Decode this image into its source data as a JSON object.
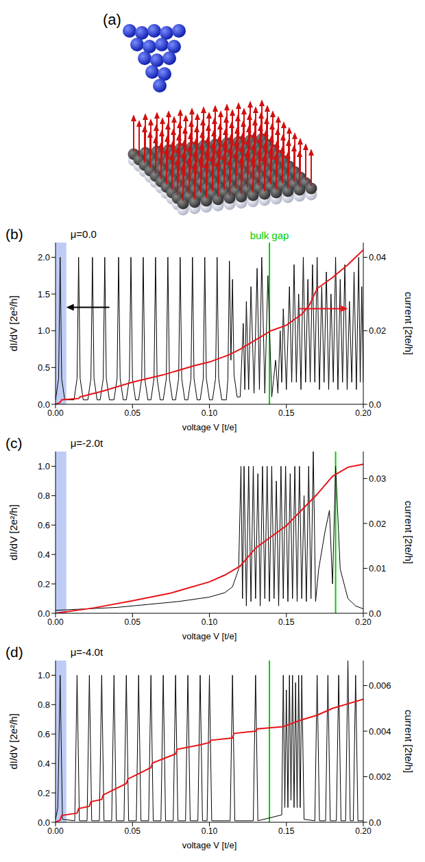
{
  "illustration": {
    "label": "(a)"
  },
  "chart_data": [
    {
      "type": "line",
      "title": "(b)",
      "annotations": [
        {
          "text": "μ=0.0"
        }
      ],
      "xlabel": "voltage V [t/e]",
      "ylabel": "dI/dV  [2e²/h]",
      "y2label": "current [2te/h]",
      "xlim": [
        0,
        0.2
      ],
      "xticks": [
        {
          "value": 0,
          "label": "0.00"
        },
        0.05,
        {
          "value": 0.1,
          "label": "0.10"
        },
        0.15,
        {
          "value": 0.2,
          "label": "0.20"
        }
      ],
      "ylim": [
        0,
        2.2
      ],
      "yticks": [
        {
          "value": 0,
          "label": "0.0"
        },
        0.5,
        {
          "value": 1,
          "label": "1.0"
        },
        1.5,
        {
          "value": 2,
          "label": "2.0"
        }
      ],
      "y2lim": [
        0,
        0.044
      ],
      "y2ticks": [
        {
          "value": 0,
          "label": "0.0"
        },
        0.02,
        0.04
      ],
      "band": {
        "x": [
          0,
          0.007
        ],
        "color": "#b3c3f3"
      },
      "vlines": [
        {
          "x": 0.139,
          "label": "bulk gap",
          "color": "#00cc00"
        }
      ],
      "series": [
        {
          "color": "#000000",
          "x": [
            0,
            0.002,
            0.003,
            0.004,
            0.006,
            0.012,
            0.014,
            0.015,
            0.016,
            0.018,
            0.021,
            0.023,
            0.024,
            0.025,
            0.027,
            0.029,
            0.031,
            0.032,
            0.033,
            0.035,
            0.038,
            0.04,
            0.041,
            0.042,
            0.044,
            0.046,
            0.048,
            0.049,
            0.05,
            0.052,
            0.054,
            0.056,
            0.057,
            0.058,
            0.06,
            0.062,
            0.064,
            0.065,
            0.066,
            0.068,
            0.07,
            0.072,
            0.073,
            0.074,
            0.076,
            0.078,
            0.08,
            0.081,
            0.082,
            0.084,
            0.086,
            0.088,
            0.089,
            0.09,
            0.092,
            0.094,
            0.096,
            0.097,
            0.098,
            0.1,
            0.102,
            0.104,
            0.105,
            0.106,
            0.108,
            0.111,
            0.112,
            0.113,
            0.114,
            0.115,
            0.116,
            0.118,
            0.12,
            0.122,
            0.123,
            0.124,
            0.1255,
            0.127,
            0.129,
            0.131,
            0.1325,
            0.134,
            0.136,
            0.138,
            0.1405,
            0.143,
            0.1445,
            0.146,
            0.147,
            0.148,
            0.15,
            0.152,
            0.1535,
            0.155,
            0.1565,
            0.158,
            0.1595,
            0.161,
            0.1625,
            0.164,
            0.1655,
            0.167,
            0.1685,
            0.17,
            0.1715,
            0.173,
            0.1745,
            0.176,
            0.1775,
            0.179,
            0.1805,
            0.182,
            0.1835,
            0.185,
            0.1865,
            0.188,
            0.1895,
            0.191,
            0.1925,
            0.194,
            0.1955,
            0.197,
            0.198,
            0.199,
            0.2
          ],
          "values": [
            0.06,
            0.35,
            2.0,
            0.35,
            0.06,
            0.06,
            0.35,
            2.0,
            0.35,
            0.06,
            0.06,
            0.35,
            2.0,
            0.35,
            0.06,
            0.06,
            0.35,
            2.0,
            0.35,
            0.06,
            0.06,
            0.35,
            2.0,
            0.35,
            0.06,
            0.06,
            0.35,
            2.0,
            0.35,
            0.06,
            0.06,
            0.35,
            2.0,
            0.35,
            0.06,
            0.06,
            0.35,
            2.0,
            0.35,
            0.06,
            0.06,
            0.35,
            2.0,
            0.35,
            0.06,
            0.06,
            0.35,
            2.0,
            0.35,
            0.06,
            0.06,
            0.35,
            2.0,
            0.35,
            0.06,
            0.06,
            0.35,
            2.0,
            0.35,
            0.06,
            0.06,
            0.35,
            2.0,
            0.35,
            0.06,
            0.06,
            0.35,
            1.95,
            0.6,
            1.7,
            0.4,
            0.1,
            0.1,
            1.1,
            0.2,
            1.4,
            0.2,
            1.6,
            0.15,
            1.85,
            0.2,
            2.0,
            0.15,
            1.75,
            0.1,
            0.6,
            0.15,
            1.0,
            0.3,
            1.3,
            0.2,
            1.6,
            0.3,
            1.9,
            0.3,
            1.5,
            0.2,
            2.0,
            0.3,
            1.7,
            0.3,
            1.9,
            0.3,
            2.0,
            0.2,
            1.6,
            0.3,
            1.8,
            0.2,
            1.5,
            0.3,
            2.0,
            0.2,
            1.7,
            0.3,
            1.9,
            0.2,
            1.4,
            0.3,
            1.8,
            0.2,
            2.0,
            0.3,
            1.6,
            0.3
          ]
        },
        {
          "color": "#e8141a",
          "axis": "y2",
          "x": [
            0,
            0.003,
            0.004,
            0.015,
            0.016,
            0.03,
            0.05,
            0.07,
            0.09,
            0.1,
            0.113,
            0.12,
            0.13,
            0.14,
            0.15,
            0.16,
            0.165,
            0.17,
            0.18,
            0.19,
            0.2
          ],
          "values": [
            0,
            0.0005,
            0.0012,
            0.0016,
            0.002,
            0.0035,
            0.006,
            0.008,
            0.0105,
            0.0115,
            0.0135,
            0.015,
            0.0175,
            0.02,
            0.0215,
            0.0245,
            0.027,
            0.0315,
            0.0345,
            0.038,
            0.042
          ]
        }
      ]
    },
    {
      "type": "line",
      "title": "(c)",
      "annotations": [
        {
          "text": "μ=-2.0t"
        }
      ],
      "xlabel": "voltage V [t/e]",
      "ylabel": "dI/dV  [2e²/h]",
      "y2label": "current [2te/h]",
      "xlim": [
        0,
        0.2
      ],
      "xticks": [
        {
          "value": 0,
          "label": "0.00"
        },
        0.05,
        {
          "value": 0.1,
          "label": "0.10"
        },
        0.15,
        {
          "value": 0.2,
          "label": "0.20"
        }
      ],
      "ylim": [
        0,
        1.1
      ],
      "yticks": [
        {
          "value": 0,
          "label": "0.0"
        },
        0.2,
        0.4,
        0.6,
        0.8,
        {
          "value": 1,
          "label": "1.0"
        }
      ],
      "y2lim": [
        0,
        0.036
      ],
      "y2ticks": [
        {
          "value": 0,
          "label": "0.0"
        },
        0.01,
        0.02,
        0.03
      ],
      "band": {
        "x": [
          0,
          0.007
        ],
        "color": "#b3c3f3"
      },
      "vlines": [
        {
          "x": 0.182,
          "color": "#00cc00"
        }
      ],
      "series": [
        {
          "color": "#000000",
          "x": [
            0,
            0.02,
            0.04,
            0.06,
            0.08,
            0.1,
            0.11,
            0.115,
            0.119,
            0.1205,
            0.1215,
            0.1225,
            0.124,
            0.1255,
            0.127,
            0.1285,
            0.13,
            0.1315,
            0.133,
            0.1345,
            0.136,
            0.1375,
            0.139,
            0.1405,
            0.142,
            0.1435,
            0.145,
            0.1465,
            0.148,
            0.1495,
            0.151,
            0.1525,
            0.154,
            0.1555,
            0.157,
            0.1585,
            0.16,
            0.1615,
            0.163,
            0.1645,
            0.166,
            0.1675,
            0.169,
            0.171,
            0.175,
            0.178,
            0.18,
            0.182,
            0.185,
            0.19,
            0.195,
            0.2
          ],
          "values": [
            0.02,
            0.03,
            0.04,
            0.06,
            0.08,
            0.11,
            0.14,
            0.18,
            0.3,
            1.0,
            0.1,
            1.0,
            0.05,
            1.0,
            0.08,
            1.0,
            0.1,
            0.95,
            0.05,
            1.0,
            0.1,
            1.0,
            0.08,
            1.0,
            0.1,
            0.9,
            0.05,
            1.0,
            0.1,
            1.0,
            0.08,
            0.95,
            0.1,
            1.0,
            0.08,
            1.0,
            0.1,
            0.8,
            0.08,
            1.0,
            0.1,
            1.1,
            0.08,
            0.3,
            0.55,
            0.7,
            0.2,
            1.0,
            0.3,
            0.1,
            0.05,
            0.03
          ]
        },
        {
          "color": "#e8141a",
          "axis": "y2",
          "x": [
            0,
            0.025,
            0.05,
            0.075,
            0.1,
            0.11,
            0.12,
            0.13,
            0.14,
            0.15,
            0.16,
            0.17,
            0.18,
            0.19,
            0.2
          ],
          "values": [
            0,
            0.0012,
            0.0028,
            0.0045,
            0.007,
            0.0085,
            0.0105,
            0.0145,
            0.017,
            0.0195,
            0.023,
            0.0265,
            0.0305,
            0.0325,
            0.0332
          ]
        }
      ]
    },
    {
      "type": "line",
      "title": "(d)",
      "annotations": [
        {
          "text": "μ=-4.0t"
        }
      ],
      "xlabel": "voltage V [t/e]",
      "ylabel": "dI/dV  [2e²/h]",
      "y2label": "current [2te/h]",
      "xlim": [
        0,
        0.2
      ],
      "xticks": [
        {
          "value": 0,
          "label": "0.00"
        },
        0.05,
        {
          "value": 0.1,
          "label": "0.10"
        },
        0.15,
        {
          "value": 0.2,
          "label": "0.20"
        }
      ],
      "ylim": [
        0,
        1.1
      ],
      "yticks": [
        {
          "value": 0,
          "label": "0.0"
        },
        0.2,
        0.4,
        0.6,
        0.8,
        {
          "value": 1,
          "label": "1.0"
        }
      ],
      "y2lim": [
        0,
        0.0071
      ],
      "y2ticks": [
        {
          "value": 0,
          "label": "0.0"
        },
        0.002,
        0.004,
        0.006
      ],
      "band": {
        "x": [
          0,
          0.007
        ],
        "color": "#b3c3f3"
      },
      "vlines": [
        {
          "x": 0.139,
          "color": "#00cc00"
        }
      ],
      "series": [
        {
          "color": "#000000",
          "x": [
            0,
            0.0015,
            0.003,
            0.0045,
            0.0125,
            0.014,
            0.0155,
            0.0205,
            0.022,
            0.0235,
            0.0285,
            0.03,
            0.0315,
            0.0365,
            0.038,
            0.0395,
            0.0445,
            0.046,
            0.0475,
            0.0525,
            0.054,
            0.0555,
            0.0605,
            0.062,
            0.0635,
            0.0685,
            0.07,
            0.0715,
            0.0765,
            0.078,
            0.0795,
            0.0845,
            0.086,
            0.0875,
            0.0925,
            0.094,
            0.0955,
            0.0985,
            0.1,
            0.1015,
            0.1135,
            0.115,
            0.1165,
            0.1285,
            0.13,
            0.1315,
            0.147,
            0.148,
            0.149,
            0.15,
            0.151,
            0.152,
            0.153,
            0.154,
            0.155,
            0.156,
            0.157,
            0.158,
            0.159,
            0.16,
            0.1615,
            0.1685,
            0.17,
            0.1715,
            0.1755,
            0.177,
            0.1785,
            0.1825,
            0.184,
            0.1855,
            0.1885,
            0.19,
            0.1915,
            0.1935,
            0.195,
            0.1965,
            0.2
          ],
          "values": [
            0.02,
            0.1,
            1.0,
            0.02,
            0.01,
            1.0,
            0.01,
            0.01,
            1.0,
            0.01,
            0.01,
            1.0,
            0.01,
            0.01,
            1.0,
            0.01,
            0.01,
            1.0,
            0.01,
            0.01,
            1.0,
            0.01,
            0.01,
            1.0,
            0.01,
            0.01,
            1.0,
            0.01,
            0.01,
            1.0,
            0.01,
            0.01,
            1.0,
            0.01,
            0.01,
            1.0,
            0.01,
            0.01,
            1.0,
            0.01,
            0.01,
            1.0,
            0.01,
            0.01,
            1.0,
            0.01,
            0.05,
            1.0,
            0.1,
            0.9,
            0.1,
            1.0,
            0.15,
            1.0,
            0.1,
            0.95,
            0.1,
            1.0,
            0.1,
            1.0,
            0.02,
            0.01,
            1.0,
            0.01,
            0.01,
            1.0,
            0.01,
            0.01,
            1.0,
            0.01,
            0.01,
            1.1,
            0.01,
            0.01,
            1.0,
            0.01,
            0.01
          ]
        },
        {
          "color": "#e8141a",
          "axis": "y2",
          "x": [
            0,
            0.003,
            0.004,
            0.014,
            0.015,
            0.022,
            0.023,
            0.03,
            0.031,
            0.046,
            0.047,
            0.062,
            0.063,
            0.078,
            0.079,
            0.094,
            0.1,
            0.101,
            0.115,
            0.116,
            0.13,
            0.131,
            0.148,
            0.16,
            0.17,
            0.18,
            0.19,
            0.2
          ],
          "values": [
            0,
            0.0001,
            0.0003,
            0.0004,
            0.0006,
            0.0007,
            0.0009,
            0.001,
            0.0012,
            0.0017,
            0.0019,
            0.0024,
            0.0026,
            0.003,
            0.0032,
            0.0034,
            0.0035,
            0.0036,
            0.0037,
            0.0039,
            0.004,
            0.0041,
            0.0042,
            0.0045,
            0.0047,
            0.005,
            0.0052,
            0.0054
          ]
        }
      ]
    }
  ]
}
